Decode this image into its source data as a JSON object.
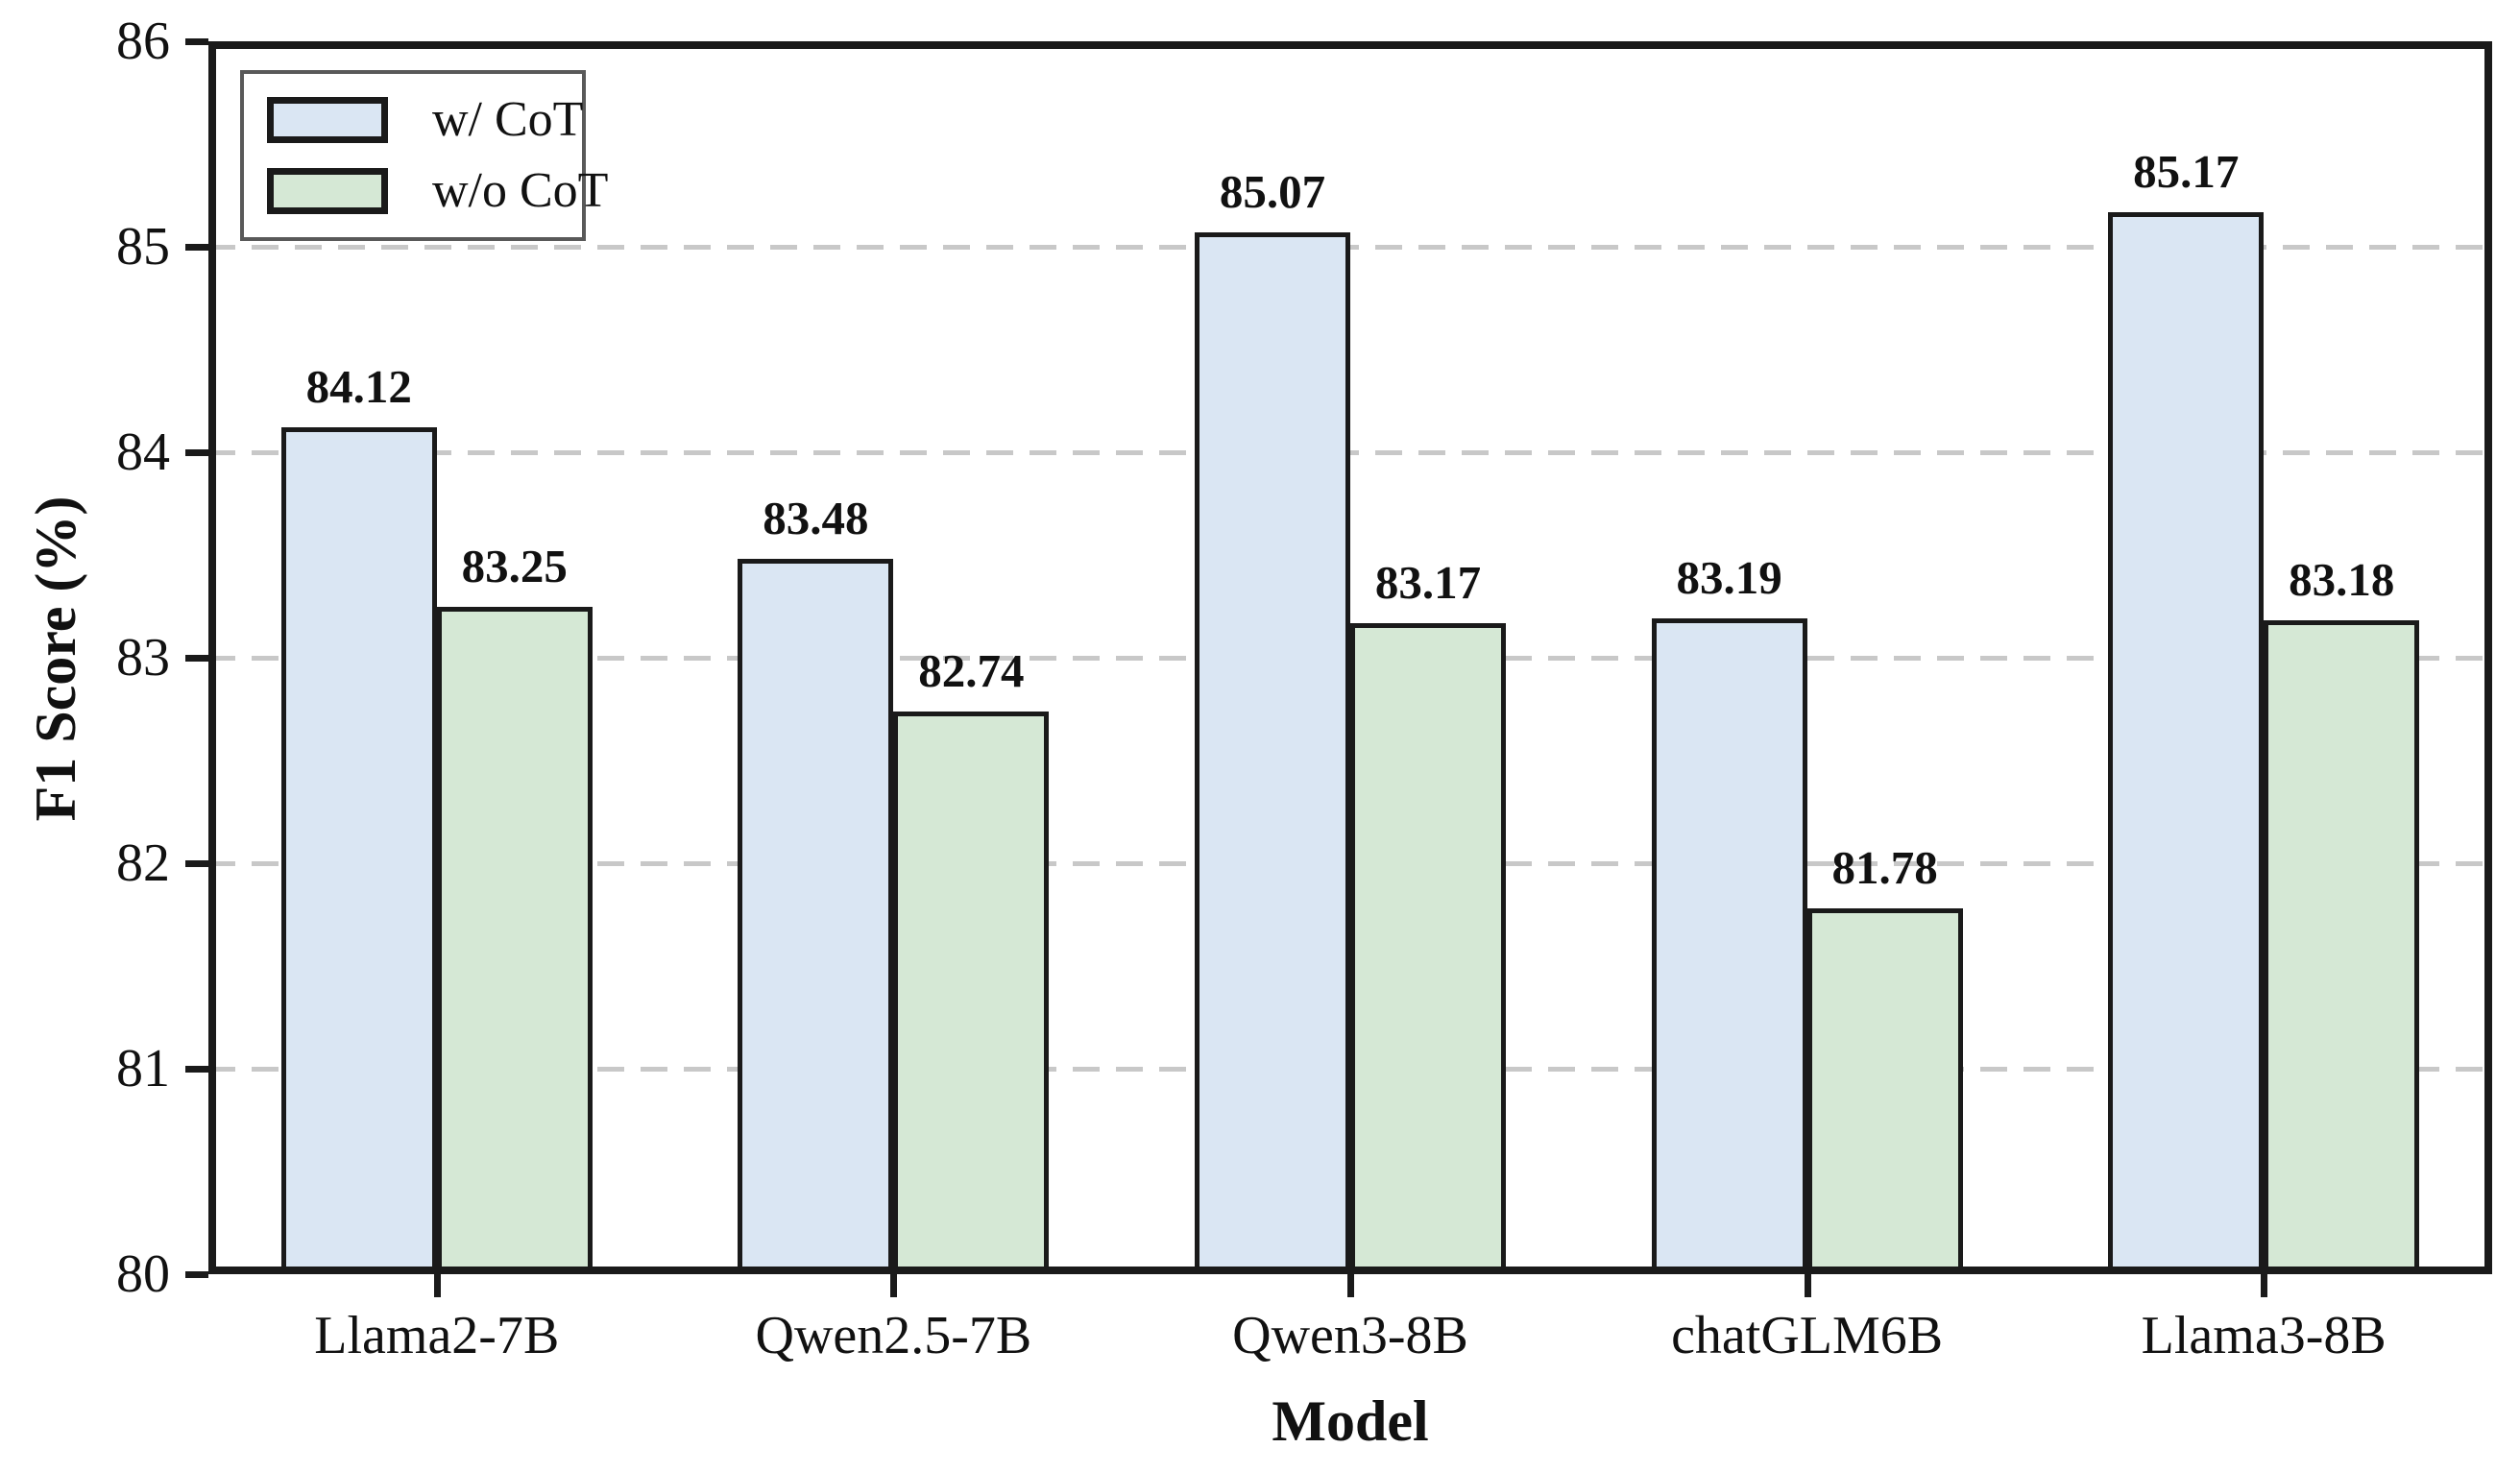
{
  "chart_data": {
    "type": "bar",
    "title": "",
    "xlabel": "Model",
    "ylabel": "F1 Score (%)",
    "categories": [
      "Llama2-7B",
      "Qwen2.5-7B",
      "Qwen3-8B",
      "chatGLM6B",
      "Llama3-8B"
    ],
    "series": [
      {
        "name": "w/ CoT",
        "color": "#dae6f3",
        "values": [
          84.12,
          83.48,
          85.07,
          83.19,
          85.17
        ]
      },
      {
        "name": "w/o CoT",
        "color": "#d5e8d5",
        "values": [
          83.25,
          82.74,
          83.17,
          81.78,
          83.18
        ]
      }
    ],
    "ylim": [
      80,
      86
    ],
    "yticks": [
      80,
      81,
      82,
      83,
      84,
      85,
      86
    ],
    "grid": true,
    "grid_style": "dashed",
    "grid_color": "#c8c8c8",
    "bar_edge_color": "#1a1a1a",
    "legend_position": "upper-left"
  }
}
